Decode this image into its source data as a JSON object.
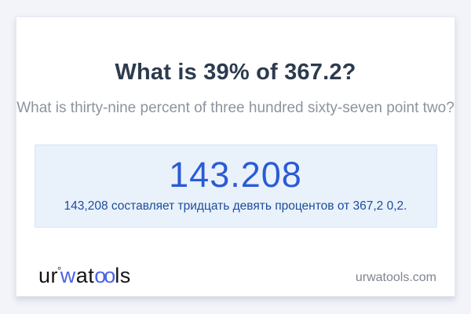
{
  "question": {
    "title": "What is 39% of 367.2?",
    "subtitle": "What is thirty-nine percent of three hundred sixty-seven point two?"
  },
  "answer": {
    "value": "143.208",
    "description": "143,208 составляет тридцать девять процентов от 367,2 0,2."
  },
  "footer": {
    "logo": {
      "part_ur": "ur",
      "degree_mark": "°",
      "part_w": "w",
      "part_at": "at",
      "part_oo": "oo",
      "part_ls": "ls"
    },
    "domain": "urwatools.com"
  },
  "colors": {
    "page_background": "#f2f4f9",
    "card_background": "#ffffff",
    "title_text": "#2d3b4e",
    "subtitle_text": "#8d939e",
    "answer_box_background": "#e9f1fb",
    "answer_box_border": "#d8e6f5",
    "answer_value_blue": "#2a5bd7",
    "answer_description_blue": "#1b4d9b",
    "logo_accent_blue": "#4a63e7",
    "domain_text": "#7e8490"
  }
}
